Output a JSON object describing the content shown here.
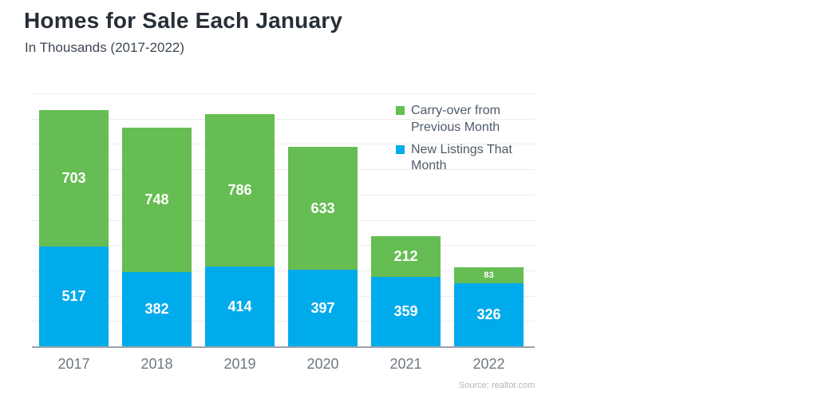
{
  "header": {
    "title": "Homes for Sale Each January",
    "subtitle": "In Thousands (2017-2022)"
  },
  "legend": [
    {
      "label": "Carry-over from Previous Month",
      "color": "#66bd53"
    },
    {
      "label": "New Listings That Month",
      "color": "#00abeb"
    }
  ],
  "source": "Source: realtor.com",
  "colors": {
    "green": "#66bd53",
    "blue": "#00abeb",
    "gridline": "#ececec",
    "axis_line": "#9ca3a8",
    "title_text": "#272e36",
    "axis_text": "#6e7881"
  },
  "chart_data": {
    "type": "bar",
    "stacked": true,
    "title": "Homes for Sale Each January",
    "subtitle": "In Thousands (2017-2022)",
    "unit": "thousands",
    "categories": [
      "2017",
      "2018",
      "2019",
      "2020",
      "2021",
      "2022"
    ],
    "series": [
      {
        "name": "New Listings That Month",
        "color": "#00abeb",
        "values": [
          517,
          382,
          414,
          397,
          359,
          326
        ]
      },
      {
        "name": "Carry-over from Previous Month",
        "color": "#66bd53",
        "values": [
          703,
          748,
          786,
          633,
          212,
          83
        ]
      }
    ],
    "totals": [
      1220,
      1130,
      1200,
      1030,
      571,
      409
    ],
    "xlabel": "",
    "ylabel": "",
    "grid": true,
    "y_axis_labels_shown": false,
    "legend_position": "top-right",
    "data_labels": "inside-segments",
    "source": "Source: realtor.com"
  }
}
